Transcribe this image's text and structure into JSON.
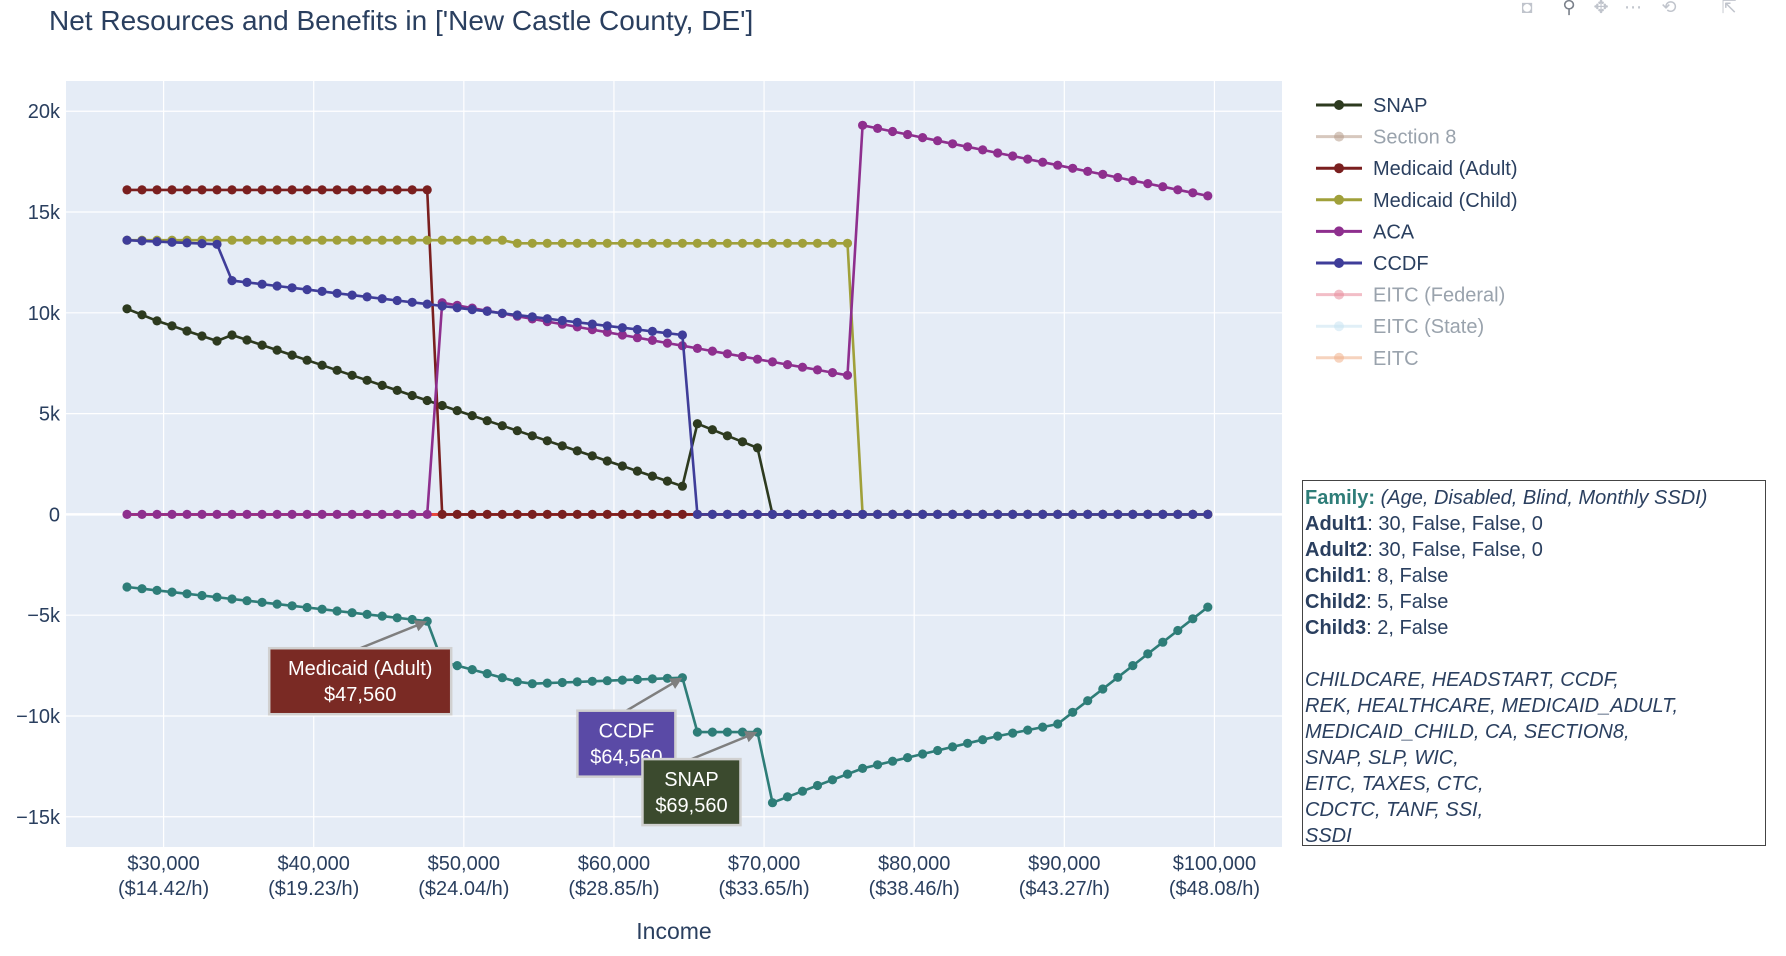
{
  "title": "Net Resources and Benefits in ['New Castle County, DE']",
  "chart_data": {
    "type": "line",
    "xlabel": "Income",
    "ylabel": "",
    "xlim": [
      23500,
      104500
    ],
    "ylim": [
      -16500,
      21500
    ],
    "x_ticks": [
      {
        "value": 30000,
        "label": "$30,000",
        "sub": "($14.42/h)"
      },
      {
        "value": 40000,
        "label": "$40,000",
        "sub": "($19.23/h)"
      },
      {
        "value": 50000,
        "label": "$50,000",
        "sub": "($24.04/h)"
      },
      {
        "value": 60000,
        "label": "$60,000",
        "sub": "($28.85/h)"
      },
      {
        "value": 70000,
        "label": "$70,000",
        "sub": "($33.65/h)"
      },
      {
        "value": 80000,
        "label": "$80,000",
        "sub": "($38.46/h)"
      },
      {
        "value": 90000,
        "label": "$90,000",
        "sub": "($43.27/h)"
      },
      {
        "value": 100000,
        "label": "$100,000",
        "sub": "($48.08/h)"
      }
    ],
    "y_ticks": [
      {
        "value": 20000,
        "label": "20k"
      },
      {
        "value": 15000,
        "label": "15k"
      },
      {
        "value": 10000,
        "label": "10k"
      },
      {
        "value": 5000,
        "label": "5k"
      },
      {
        "value": 0,
        "label": "0"
      },
      {
        "value": -5000,
        "label": "−5k"
      },
      {
        "value": -10000,
        "label": "−10k"
      },
      {
        "value": -15000,
        "label": "−15k"
      }
    ],
    "grid": true,
    "legend_position": "right",
    "x_start": 27560,
    "x_step": 1000,
    "x_count": 73,
    "series": [
      {
        "name": "SNAP",
        "color": "#2d3a1f",
        "dimmed": false,
        "in_legend": true,
        "points": [
          [
            27560,
            10200
          ],
          [
            29560,
            9600
          ],
          [
            33560,
            8600
          ],
          [
            34560,
            8900
          ],
          [
            64560,
            1400
          ],
          [
            65560,
            4500
          ],
          [
            69560,
            3300
          ],
          [
            70560,
            0
          ],
          [
            99560,
            0
          ]
        ]
      },
      {
        "name": "Section 8",
        "color": "#b79c8a",
        "dimmed": true,
        "in_legend": true,
        "points": [
          [
            27560,
            0
          ],
          [
            99560,
            0
          ]
        ]
      },
      {
        "name": "Medicaid (Adult)",
        "color": "#7a1f1f",
        "dimmed": false,
        "in_legend": true,
        "points": [
          [
            27560,
            16100
          ],
          [
            47560,
            16100
          ],
          [
            48560,
            0
          ],
          [
            99560,
            0
          ]
        ]
      },
      {
        "name": "Medicaid (Child)",
        "color": "#a0a03a",
        "dimmed": false,
        "in_legend": true,
        "points": [
          [
            27560,
            13600
          ],
          [
            52560,
            13600
          ],
          [
            53560,
            13450
          ],
          [
            75560,
            13450
          ],
          [
            76560,
            0
          ],
          [
            99560,
            0
          ]
        ]
      },
      {
        "name": "ACA",
        "color": "#8e2f8e",
        "dimmed": false,
        "in_legend": true,
        "points": [
          [
            27560,
            0
          ],
          [
            47560,
            0
          ],
          [
            48560,
            10500
          ],
          [
            75560,
            6900
          ],
          [
            76560,
            19300
          ],
          [
            99560,
            15800
          ]
        ]
      },
      {
        "name": "CCDF",
        "color": "#3f3d99",
        "dimmed": false,
        "in_legend": true,
        "points": [
          [
            27560,
            13600
          ],
          [
            33560,
            13400
          ],
          [
            34560,
            11600
          ],
          [
            64560,
            8900
          ],
          [
            65560,
            0
          ],
          [
            99560,
            0
          ]
        ]
      },
      {
        "name": "EITC (Federal)",
        "color": "#e88a9a",
        "dimmed": true,
        "in_legend": true,
        "points": [
          [
            27560,
            0
          ],
          [
            99560,
            0
          ]
        ]
      },
      {
        "name": "EITC (State)",
        "color": "#c9e3f2",
        "dimmed": true,
        "in_legend": true,
        "points": [
          [
            27560,
            0
          ],
          [
            99560,
            0
          ]
        ]
      },
      {
        "name": "EITC",
        "color": "#f0b08a",
        "dimmed": true,
        "in_legend": true,
        "points": [
          [
            27560,
            0
          ],
          [
            99560,
            0
          ]
        ]
      },
      {
        "name": "Net Resources",
        "color": "#2e7d78",
        "dimmed": false,
        "in_legend": false,
        "points": [
          [
            27560,
            -3600
          ],
          [
            47560,
            -5300
          ],
          [
            48560,
            -7300
          ],
          [
            53560,
            -8300
          ],
          [
            54560,
            -8400
          ],
          [
            64560,
            -8100
          ],
          [
            65560,
            -10800
          ],
          [
            69560,
            -10800
          ],
          [
            70560,
            -14300
          ],
          [
            76560,
            -12600
          ],
          [
            85560,
            -11000
          ],
          [
            89560,
            -10400
          ],
          [
            99560,
            -4600
          ]
        ]
      }
    ],
    "annotations": [
      {
        "label": "Medicaid (Adult)",
        "value": "$47,560",
        "x": 47560,
        "y": -5300,
        "color": "#7a2a24"
      },
      {
        "label": "CCDF",
        "value": "$64,560",
        "x": 64560,
        "y": -8100,
        "color": "#5a4aa6"
      },
      {
        "label": "SNAP",
        "value": "$69,560",
        "x": 69560,
        "y": -10800,
        "color": "#3b4a2e"
      }
    ]
  },
  "info": {
    "family_label": "Family:",
    "family_desc": " (Age, Disabled, Blind, Monthly SSDI)",
    "members": [
      {
        "name": "Adult1",
        "value": ": 30, False, False, 0"
      },
      {
        "name": "Adult2",
        "value": ": 30, False, False, 0"
      },
      {
        "name": "Child1",
        "value": ": 8, False"
      },
      {
        "name": "Child2",
        "value": ": 5, False"
      },
      {
        "name": "Child3",
        "value": ": 2, False"
      }
    ],
    "programs": [
      "CHILDCARE, HEADSTART, CCDF,",
      "REK, HEALTHCARE, MEDICAID_ADULT,",
      "MEDICAID_CHILD, CA, SECTION8,",
      "SNAP, SLP, WIC,",
      "EITC, TAXES, CTC,",
      "CDCTC, TANF, SSI,",
      "SSDI"
    ]
  },
  "modebar": [
    "camera-icon",
    "zoom-icon",
    "pan-icon",
    "box-select-icon",
    "lasso-icon",
    "autoscale-icon"
  ]
}
